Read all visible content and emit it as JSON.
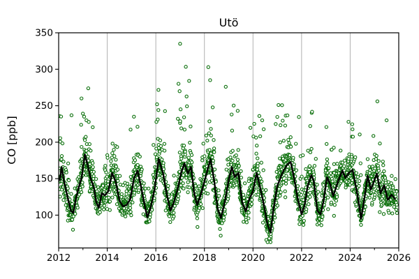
{
  "title": "Utö",
  "axes": {
    "ylabel": "CO [ppb]",
    "xlabel": "",
    "x_tick_labels": [
      "2012",
      "2014",
      "2016",
      "2018",
      "2020",
      "2022",
      "2024",
      "2026"
    ],
    "y_tick_labels": [
      "100",
      "150",
      "200",
      "250",
      "300",
      "350"
    ]
  },
  "colors": {
    "marker": "#0a6f0a",
    "marker_fill": "#ffffff",
    "line": "#000000",
    "grid": "#b0b0b0",
    "axis": "#000000",
    "background": "#ffffff"
  },
  "chart_data": {
    "type": "scatter",
    "title": "Utö",
    "xlabel": "",
    "ylabel": "CO [ppb]",
    "xlim": [
      2012,
      2026
    ],
    "ylim": [
      55,
      350
    ],
    "x_major_ticks": [
      2012,
      2014,
      2016,
      2018,
      2020,
      2022,
      2024,
      2026
    ],
    "x_minor_ticks": [
      2013,
      2015,
      2017,
      2019,
      2021,
      2023,
      2025
    ],
    "y_major_ticks": [
      100,
      150,
      200,
      250,
      300,
      350
    ],
    "grid": "vertical-at-major-ticks",
    "grid_years": [
      2014,
      2016,
      2018,
      2020,
      2022,
      2024
    ],
    "legend": "none",
    "series": [
      {
        "name": "CO observations",
        "type": "scatter",
        "marker": "open-circle",
        "marker_radius": 2.1,
        "color": "#0a6f0a",
        "generator": {
          "seed": 42,
          "t_start": 2012.04,
          "t_end": 2025.93,
          "mean_step_years": 0.0052,
          "sigma_winter": 13,
          "sigma_summer": 9,
          "winter_tail_prob": 0.2,
          "winter_tail_max": 95,
          "winter_spike_prob": 0.025,
          "winter_spike_min": 60,
          "winter_spike_span": 70,
          "summer_tail_prob": 0.06,
          "summer_tail_max": 35,
          "clamp_min": 63,
          "clamp_max": 338
        },
        "outliers": [
          [
            2012.53,
            237
          ],
          [
            2012.94,
            260
          ],
          [
            2013.05,
            235
          ],
          [
            2015.1,
            235
          ],
          [
            2016.05,
            252
          ],
          [
            2016.98,
            270
          ],
          [
            2017.0,
            335
          ],
          [
            2018.16,
            303
          ],
          [
            2018.88,
            276
          ],
          [
            2019.37,
            243
          ],
          [
            2021.05,
            251
          ],
          [
            2023.93,
            228
          ],
          [
            2025.12,
            256
          ],
          [
            2025.5,
            230
          ],
          [
            2020.55,
            66
          ],
          [
            2020.6,
            63
          ],
          [
            2020.67,
            68
          ]
        ]
      },
      {
        "name": "smoothed seasonal mean",
        "type": "line",
        "color": "#000000",
        "width": 2.4,
        "points": [
          [
            2012.05,
            148
          ],
          [
            2012.12,
            166
          ],
          [
            2012.2,
            150
          ],
          [
            2012.35,
            127
          ],
          [
            2012.5,
            106
          ],
          [
            2012.6,
            103
          ],
          [
            2012.72,
            124
          ],
          [
            2012.85,
            141
          ],
          [
            2012.95,
            152
          ],
          [
            2013.08,
            183
          ],
          [
            2013.2,
            168
          ],
          [
            2013.32,
            150
          ],
          [
            2013.45,
            138
          ],
          [
            2013.55,
            118
          ],
          [
            2013.65,
            110
          ],
          [
            2013.78,
            130
          ],
          [
            2013.9,
            127
          ],
          [
            2014.05,
            133
          ],
          [
            2014.2,
            158
          ],
          [
            2014.35,
            146
          ],
          [
            2014.5,
            120
          ],
          [
            2014.65,
            112
          ],
          [
            2014.8,
            114
          ],
          [
            2014.95,
            122
          ],
          [
            2015.1,
            150
          ],
          [
            2015.25,
            161
          ],
          [
            2015.4,
            137
          ],
          [
            2015.55,
            112
          ],
          [
            2015.65,
            97
          ],
          [
            2015.8,
            112
          ],
          [
            2015.95,
            136
          ],
          [
            2016.12,
            177
          ],
          [
            2016.3,
            157
          ],
          [
            2016.45,
            129
          ],
          [
            2016.6,
            106
          ],
          [
            2016.75,
            118
          ],
          [
            2016.9,
            136
          ],
          [
            2017.05,
            159
          ],
          [
            2017.18,
            171
          ],
          [
            2017.32,
            157
          ],
          [
            2017.45,
            166
          ],
          [
            2017.58,
            130
          ],
          [
            2017.7,
            114
          ],
          [
            2017.85,
            128
          ],
          [
            2018.0,
            146
          ],
          [
            2018.25,
            177
          ],
          [
            2018.4,
            148
          ],
          [
            2018.55,
            108
          ],
          [
            2018.68,
            96
          ],
          [
            2018.85,
            120
          ],
          [
            2019.0,
            148
          ],
          [
            2019.13,
            166
          ],
          [
            2019.25,
            152
          ],
          [
            2019.4,
            158
          ],
          [
            2019.55,
            118
          ],
          [
            2019.7,
            105
          ],
          [
            2019.85,
            122
          ],
          [
            2020.0,
            133
          ],
          [
            2020.15,
            158
          ],
          [
            2020.3,
            137
          ],
          [
            2020.45,
            114
          ],
          [
            2020.6,
            87
          ],
          [
            2020.72,
            76
          ],
          [
            2020.85,
            110
          ],
          [
            2021.0,
            140
          ],
          [
            2021.2,
            157
          ],
          [
            2021.4,
            169
          ],
          [
            2021.55,
            173
          ],
          [
            2021.7,
            150
          ],
          [
            2021.85,
            121
          ],
          [
            2022.0,
            101
          ],
          [
            2022.12,
            113
          ],
          [
            2022.25,
            140
          ],
          [
            2022.4,
            155
          ],
          [
            2022.5,
            147
          ],
          [
            2022.65,
            106
          ],
          [
            2022.78,
            101
          ],
          [
            2022.9,
            119
          ],
          [
            2023.05,
            152
          ],
          [
            2023.18,
            142
          ],
          [
            2023.3,
            126
          ],
          [
            2023.5,
            146
          ],
          [
            2023.68,
            161
          ],
          [
            2023.8,
            151
          ],
          [
            2023.95,
            158
          ],
          [
            2024.1,
            162
          ],
          [
            2024.3,
            128
          ],
          [
            2024.45,
            95
          ],
          [
            2024.6,
            126
          ],
          [
            2024.72,
            154
          ],
          [
            2024.85,
            135
          ],
          [
            2025.0,
            148
          ],
          [
            2025.1,
            157
          ],
          [
            2025.25,
            130
          ],
          [
            2025.4,
            141
          ],
          [
            2025.55,
            121
          ],
          [
            2025.7,
            128
          ],
          [
            2025.85,
            122
          ]
        ]
      }
    ]
  }
}
